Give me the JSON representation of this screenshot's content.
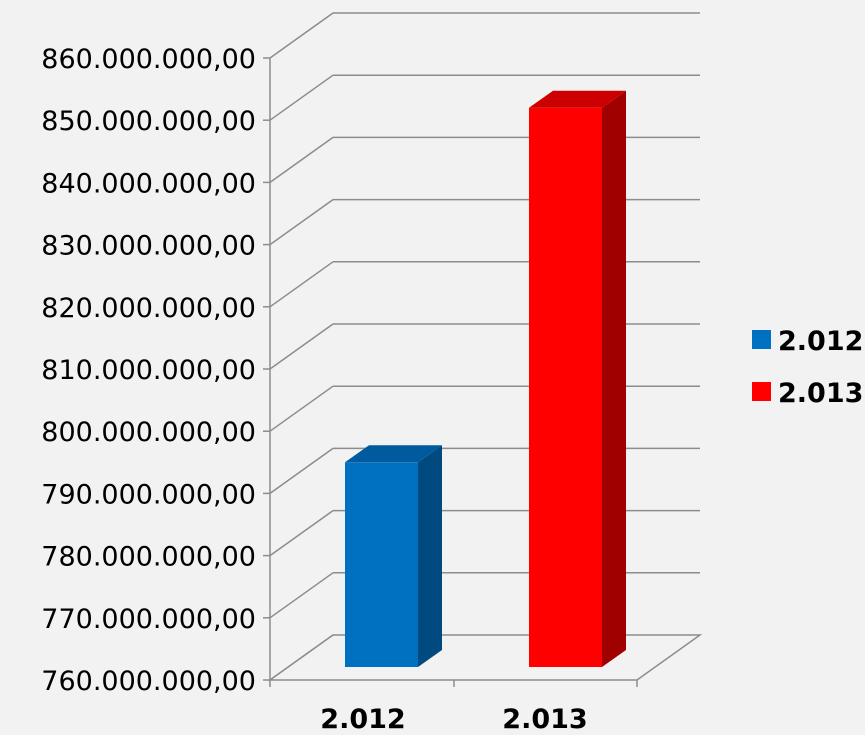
{
  "chart_data": {
    "type": "bar",
    "title": "",
    "xlabel": "",
    "ylabel": "",
    "categories": [
      "2.012",
      "2.013"
    ],
    "values": [
      795000000,
      852000000
    ],
    "colors": [
      "#0070c0",
      "#ff0000"
    ],
    "side_colors": [
      "#004a80",
      "#a00000"
    ],
    "top_colors": [
      "#005a9e",
      "#cc0000"
    ],
    "ylim": [
      760000000,
      860000000
    ],
    "ytick_values": [
      760000000,
      770000000,
      780000000,
      790000000,
      800000000,
      810000000,
      820000000,
      830000000,
      840000000,
      850000000,
      860000000
    ],
    "ytick_labels": [
      "760.000.000,00",
      "770.000.000,00",
      "780.000.000,00",
      "790.000.000,00",
      "800.000.000,00",
      "810.000.000,00",
      "820.000.000,00",
      "830.000.000,00",
      "840.000.000,00",
      "850.000.000,00",
      "860.000.000,00"
    ],
    "legend": {
      "position": "right",
      "entries": [
        {
          "label": "2.012",
          "color": "#0070c0"
        },
        {
          "label": "2.013",
          "color": "#ff0000"
        }
      ]
    },
    "grid": true,
    "style": "3d-column"
  }
}
